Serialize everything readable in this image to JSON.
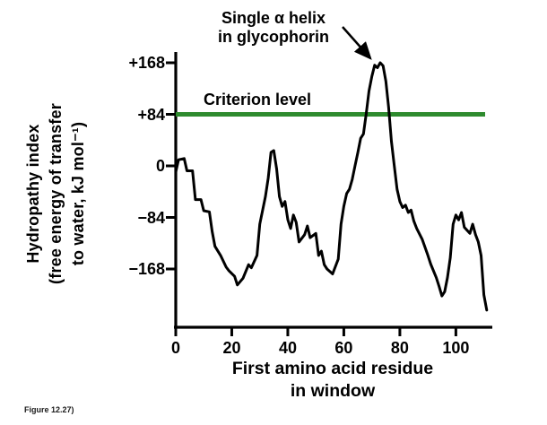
{
  "figure": {
    "caption": "Figure 12.27)"
  },
  "annotation": {
    "lines": [
      "Single α helix",
      "in glycophorin"
    ]
  },
  "criterion_label": "Criterion level",
  "colors": {
    "criterion_line": "#2e8b2e",
    "curve": "#000000",
    "axis": "#000000"
  },
  "chart_data": {
    "type": "line",
    "title": "",
    "xlabel": "First amino acid residue in window",
    "xlabel_lines": [
      "First amino acid residue",
      "in window"
    ],
    "ylabel": "Hydropathy index (free energy of transfer to water, kJ mol⁻¹)",
    "ylabel_lines": [
      "Hydropathy index",
      "(free energy of transfer",
      "to water, kJ mol⁻¹)"
    ],
    "xlim": [
      0,
      113
    ],
    "ylim": [
      -263,
      186
    ],
    "grid": false,
    "legend_position": null,
    "x_ticks": [
      0,
      20,
      40,
      60,
      80,
      100
    ],
    "x_tick_labels": [
      "0",
      "20",
      "40",
      "60",
      "80",
      "100"
    ],
    "y_ticks": [
      168,
      84,
      0,
      -84,
      -168
    ],
    "y_tick_labels": [
      "+168",
      "+84",
      "0",
      "−84",
      "−168"
    ],
    "criterion_level": 84,
    "annotation": {
      "text": "Single α helix in glycophorin",
      "points_to": [
        73,
        168
      ]
    },
    "series": [
      {
        "name": "hydropathy",
        "color": "#000000",
        "points": [
          [
            0,
            -10
          ],
          [
            1,
            10
          ],
          [
            3,
            12
          ],
          [
            4,
            -8
          ],
          [
            6,
            -8
          ],
          [
            7,
            -55
          ],
          [
            9,
            -55
          ],
          [
            10,
            -73
          ],
          [
            12,
            -75
          ],
          [
            13,
            -107
          ],
          [
            14,
            -131
          ],
          [
            16,
            -146
          ],
          [
            18,
            -165
          ],
          [
            19,
            -171
          ],
          [
            21,
            -180
          ],
          [
            22,
            -194
          ],
          [
            24,
            -183
          ],
          [
            26,
            -161
          ],
          [
            27,
            -166
          ],
          [
            29,
            -146
          ],
          [
            30,
            -95
          ],
          [
            32,
            -50
          ],
          [
            33,
            -20
          ],
          [
            34,
            22
          ],
          [
            35,
            25
          ],
          [
            36,
            -5
          ],
          [
            37,
            -50
          ],
          [
            38,
            -66
          ],
          [
            39,
            -58
          ],
          [
            40,
            -88
          ],
          [
            41,
            -102
          ],
          [
            42,
            -80
          ],
          [
            43,
            -92
          ],
          [
            44,
            -124
          ],
          [
            46,
            -112
          ],
          [
            47,
            -98
          ],
          [
            48,
            -117
          ],
          [
            50,
            -110
          ],
          [
            51,
            -146
          ],
          [
            52,
            -139
          ],
          [
            53,
            -161
          ],
          [
            54,
            -168
          ],
          [
            56,
            -176
          ],
          [
            58,
            -152
          ],
          [
            59,
            -95
          ],
          [
            60,
            -66
          ],
          [
            61,
            -45
          ],
          [
            62,
            -38
          ],
          [
            63,
            -22
          ],
          [
            64,
            0
          ],
          [
            65,
            22
          ],
          [
            66,
            45
          ],
          [
            67,
            52
          ],
          [
            68,
            85
          ],
          [
            69,
            122
          ],
          [
            70,
            146
          ],
          [
            71,
            164
          ],
          [
            72,
            160
          ],
          [
            73,
            168
          ],
          [
            74,
            163
          ],
          [
            75,
            138
          ],
          [
            76,
            95
          ],
          [
            77,
            40
          ],
          [
            78,
            0
          ],
          [
            79,
            -38
          ],
          [
            80,
            -58
          ],
          [
            81,
            -68
          ],
          [
            82,
            -64
          ],
          [
            83,
            -76
          ],
          [
            84,
            -72
          ],
          [
            85,
            -90
          ],
          [
            86,
            -102
          ],
          [
            88,
            -120
          ],
          [
            90,
            -146
          ],
          [
            91,
            -160
          ],
          [
            93,
            -182
          ],
          [
            94,
            -196
          ],
          [
            95,
            -212
          ],
          [
            96,
            -205
          ],
          [
            97,
            -182
          ],
          [
            98,
            -150
          ],
          [
            99,
            -95
          ],
          [
            100,
            -80
          ],
          [
            101,
            -88
          ],
          [
            102,
            -76
          ],
          [
            103,
            -100
          ],
          [
            105,
            -110
          ],
          [
            106,
            -95
          ],
          [
            107,
            -112
          ],
          [
            108,
            -124
          ],
          [
            109,
            -146
          ],
          [
            110,
            -210
          ],
          [
            111,
            -235
          ]
        ]
      }
    ]
  }
}
